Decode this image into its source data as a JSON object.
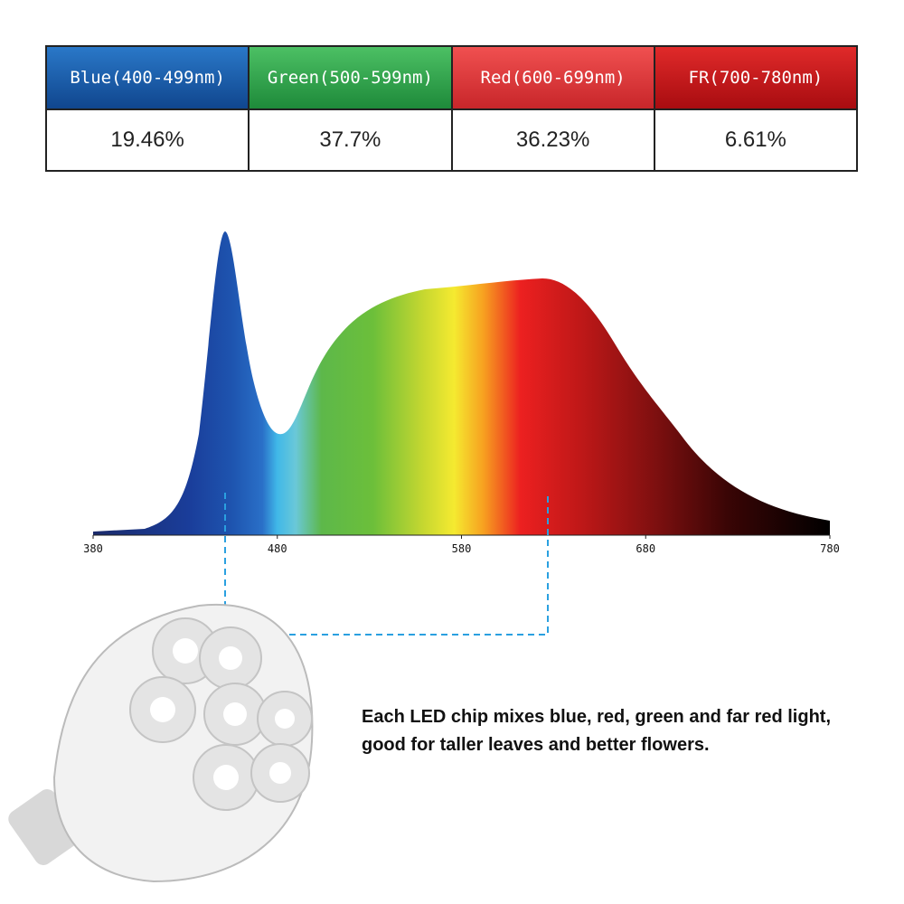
{
  "table": {
    "header": [
      "Blue(400-499nm)",
      "Green(500-599nm)",
      "Red(600-699nm)",
      "FR(700-780nm)"
    ],
    "rows": [
      [
        "19.46%",
        "37.7%",
        "36.23%",
        "6.61%"
      ]
    ]
  },
  "spectrum": {
    "xlim": [
      380,
      780
    ],
    "xticks": [
      380,
      480,
      580,
      680,
      780
    ]
  },
  "caption": "Each LED chip mixes blue, red, green and far red light, good for taller leaves and better flowers."
}
